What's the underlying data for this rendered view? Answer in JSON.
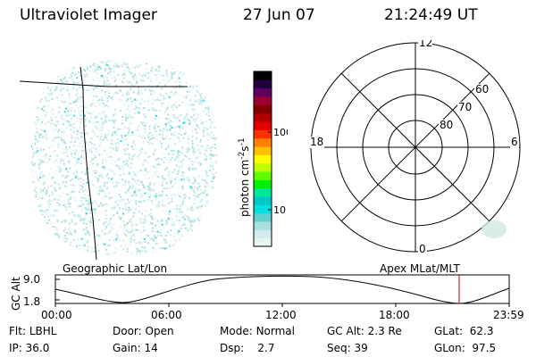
{
  "header": {
    "instrument": "Ultraviolet Imager",
    "date": "27 Jun 07",
    "time": "21:24:49 UT"
  },
  "colorbar": {
    "unit_label": "photon cm",
    "unit_exp1": "-2",
    "unit_s": "s",
    "unit_exp2": "-1",
    "tick_100": "100",
    "tick_10": "10",
    "colors": [
      "#e8f4f4",
      "#d0ecec",
      "#a8e0e0",
      "#60d0d0",
      "#00e0e0",
      "#00c8c8",
      "#00e8a0",
      "#00f000",
      "#60ff00",
      "#c0ff00",
      "#ffff00",
      "#ffc000",
      "#ff8000",
      "#ff3000",
      "#e00000",
      "#b00000",
      "#800000",
      "#a00030",
      "#600060",
      "#200040",
      "#000000"
    ]
  },
  "polar": {
    "labels": {
      "top": "12",
      "bottom": "0",
      "left": "18",
      "right": "6"
    },
    "lat_labels": [
      "60",
      "70",
      "80"
    ]
  },
  "timeline": {
    "left_title": "Geographic Lat/Lon",
    "right_title": "Apex MLat/MLT",
    "ylabel": "GC Alt",
    "ytick_top": "9.0",
    "ytick_bottom": "1.8",
    "xticks": [
      "00:00",
      "06:00",
      "12:00",
      "18:00",
      "23:59"
    ]
  },
  "status": {
    "flt_label": "Flt:",
    "flt_value": "LBHL",
    "ip_label": "IP:",
    "ip_value": "36.0",
    "door_label": "Door:",
    "door_value": "Open",
    "gain_label": "Gain:",
    "gain_value": "14",
    "mode_label": "Mode:",
    "mode_value": "Normal",
    "dsp_label": "Dsp:",
    "dsp_value": "2.7",
    "gcalt_label": "GC Alt:",
    "gcalt_value": "2.3 Re",
    "seq_label": "Seq:",
    "seq_value": "39",
    "glat_label": "GLat:",
    "glat_value": "62.3",
    "glon_label": "GLon:",
    "glon_value": "97.5"
  }
}
